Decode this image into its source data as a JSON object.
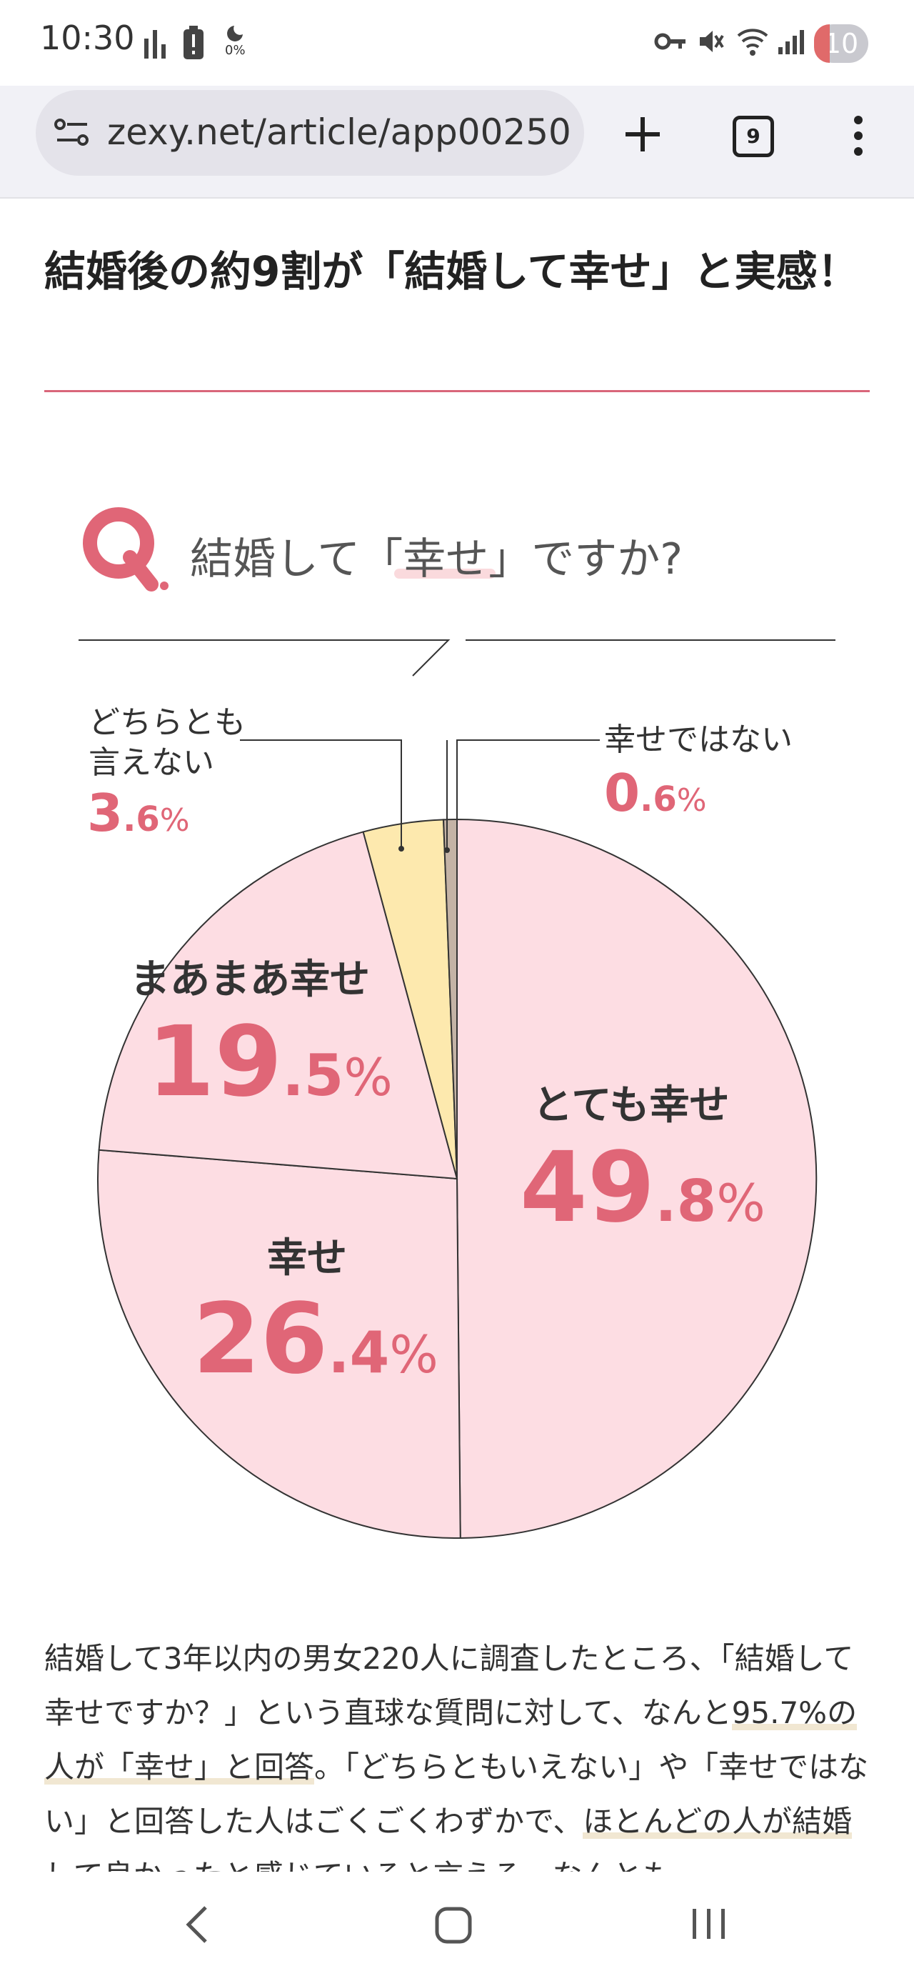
{
  "status_bar": {
    "time": "10:30",
    "battery_percent": "0%",
    "notification_count": "10"
  },
  "browser": {
    "url": "zexy.net/article/app00250",
    "tab_count": "9"
  },
  "article": {
    "heading": "結婚後の約9割が「結婚して幸せ」と実感！",
    "question": "結婚して「幸せ」ですか?",
    "body_parts": [
      "結婚して3年以内の男女220人に調査したところ、「結婚して幸せですか？」という直球な質問に対して、なんと",
      "95.7%の人が「幸せ」と回答",
      "。「どちらともいえない」や「幸せではない」と回答した人はごくごくわずかで、",
      "ほとんどの人が結婚して良かったと感じていると言える。なんとも"
    ]
  },
  "chart_data": {
    "type": "pie",
    "title": "結婚して「幸せ」ですか?",
    "start": "12 o'clock, clockwise",
    "slices": [
      {
        "label": "とても幸せ",
        "value": 49.8,
        "int": "49",
        "dec": ".8",
        "color": "#fddde3"
      },
      {
        "label": "幸せ",
        "value": 26.4,
        "int": "26",
        "dec": ".4",
        "color": "#fddde3"
      },
      {
        "label": "まあまあ幸せ",
        "value": 19.5,
        "int": "19",
        "dec": ".5",
        "color": "#fddde3"
      },
      {
        "label": "どちらとも言えない",
        "value": 3.6,
        "int": "3",
        "dec": ".6",
        "color": "#fde9ae"
      },
      {
        "label": "幸せではない",
        "value": 0.6,
        "int": "0",
        "dec": ".6",
        "color": "#c4b3a6"
      }
    ],
    "label_lines": {
      "neither_1": "どちらとも",
      "neither_2": "言えない"
    },
    "unit": "%"
  }
}
